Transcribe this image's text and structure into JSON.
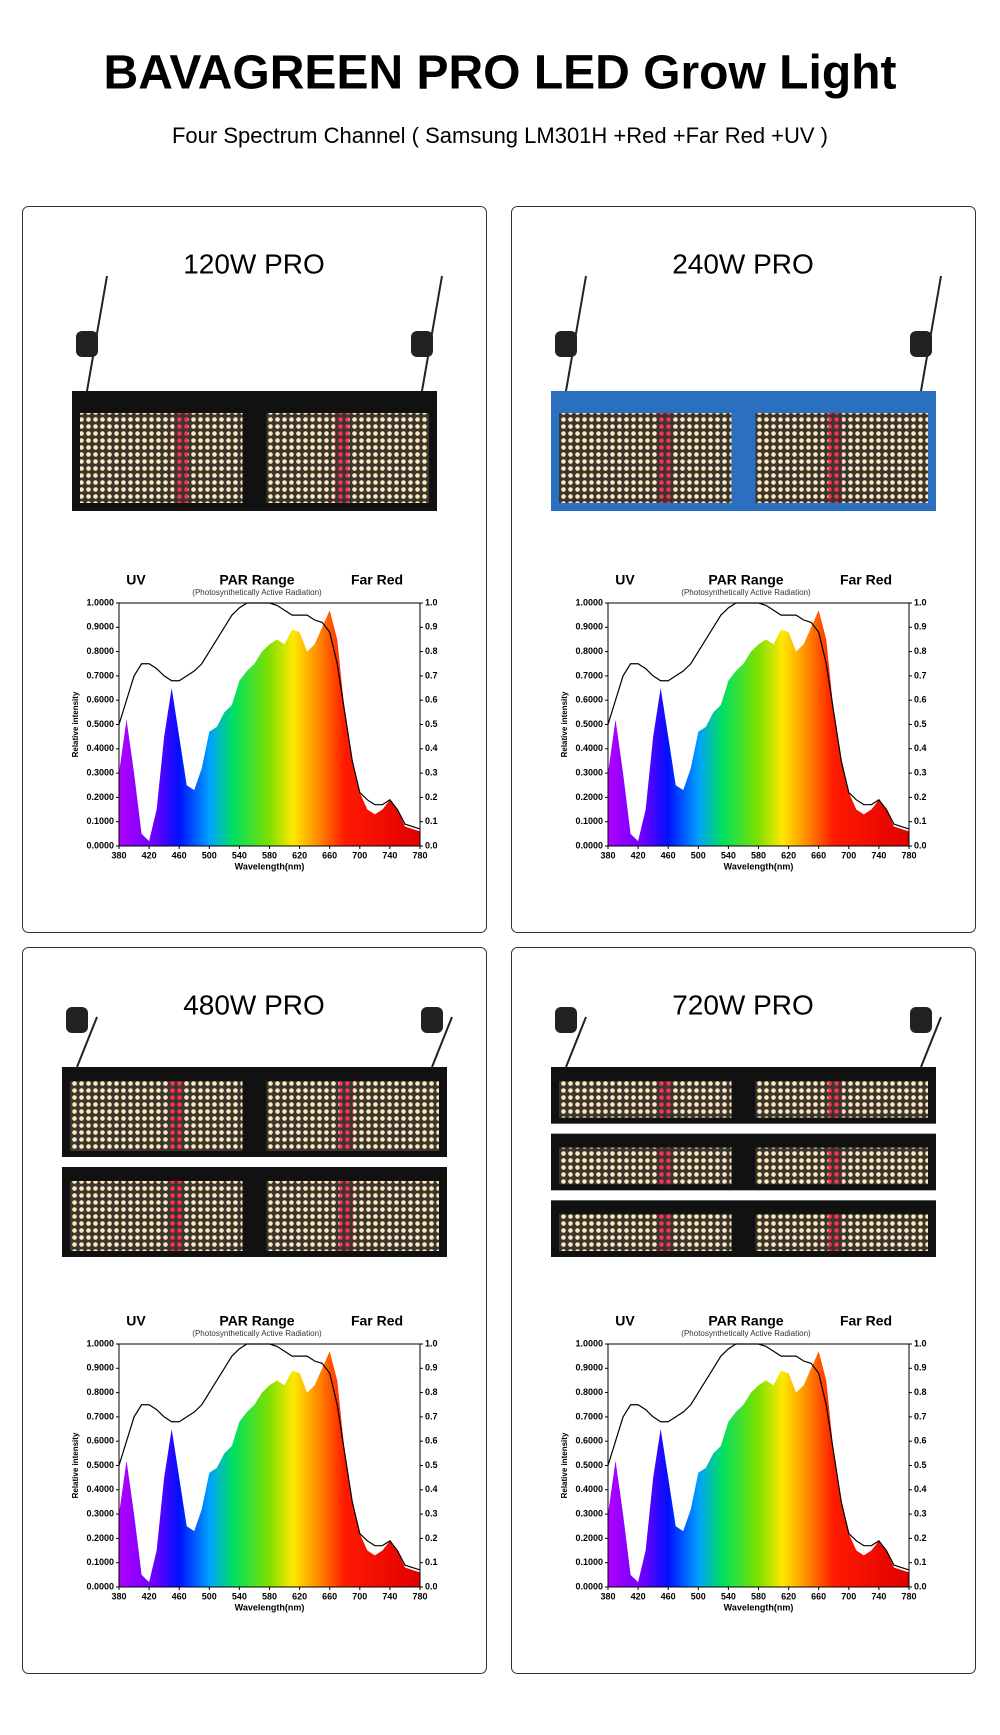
{
  "header": {
    "title": "BAVAGREEN PRO LED Grow Light",
    "subtitle": "Four Spectrum Channel ( Samsung LM301H +Red +Far Red +UV )"
  },
  "panels": [
    {
      "title": "120W PRO"
    },
    {
      "title": "240W PRO"
    },
    {
      "title": "480W PRO"
    },
    {
      "title": "720W PRO"
    }
  ],
  "chart_data": {
    "type": "area",
    "annotations": {
      "uv": "UV",
      "par": "PAR Range",
      "par_note": "(Photosynthetically Active Radiation)",
      "far_red": "Far Red"
    },
    "ylabel": "Relative intensity",
    "xlabel": "Wavelength(nm)",
    "x": [
      380,
      390,
      400,
      410,
      420,
      430,
      440,
      450,
      460,
      470,
      480,
      490,
      500,
      510,
      520,
      530,
      540,
      550,
      560,
      570,
      580,
      590,
      600,
      610,
      620,
      630,
      640,
      650,
      660,
      670,
      680,
      690,
      700,
      710,
      720,
      730,
      740,
      750,
      760,
      770,
      780
    ],
    "series": [
      {
        "color": "#000000",
        "values": [
          0.5,
          0.6,
          0.7,
          0.75,
          0.75,
          0.73,
          0.7,
          0.68,
          0.68,
          0.7,
          0.72,
          0.75,
          0.8,
          0.85,
          0.9,
          0.95,
          0.98,
          1.0,
          1.0,
          1.0,
          1.0,
          0.99,
          0.97,
          0.95,
          0.95,
          0.95,
          0.93,
          0.92,
          0.88,
          0.75,
          0.55,
          0.35,
          0.22,
          0.19,
          0.17,
          0.17,
          0.19,
          0.15,
          0.09,
          0.08,
          0.07
        ]
      },
      {
        "color": "spectrum",
        "values": [
          0.3,
          0.52,
          0.3,
          0.05,
          0.02,
          0.15,
          0.45,
          0.65,
          0.45,
          0.25,
          0.23,
          0.32,
          0.47,
          0.49,
          0.55,
          0.58,
          0.68,
          0.72,
          0.75,
          0.8,
          0.83,
          0.85,
          0.83,
          0.89,
          0.88,
          0.8,
          0.83,
          0.9,
          0.97,
          0.85,
          0.55,
          0.35,
          0.22,
          0.15,
          0.13,
          0.15,
          0.19,
          0.15,
          0.08,
          0.07,
          0.06
        ]
      }
    ],
    "xlim": [
      380,
      780
    ],
    "xticks": [
      380,
      420,
      460,
      500,
      540,
      580,
      620,
      660,
      700,
      740,
      780
    ],
    "ylim": [
      0,
      1
    ],
    "yticks": [
      {
        "value": 0,
        "label": "0.0000"
      },
      {
        "value": 0.1,
        "label": "0.1000"
      },
      {
        "value": 0.2,
        "label": "0.2000"
      },
      {
        "value": 0.3,
        "label": "0.3000"
      },
      {
        "value": 0.4,
        "label": "0.4000"
      },
      {
        "value": 0.5,
        "label": "0.5000"
      },
      {
        "value": 0.6,
        "label": "0.6000"
      },
      {
        "value": 0.7,
        "label": "0.7000"
      },
      {
        "value": 0.8,
        "label": "0.8000"
      },
      {
        "value": 0.9,
        "label": "0.9000"
      },
      {
        "value": 1,
        "label": "1.0000"
      }
    ],
    "y2lim": [
      0,
      1
    ],
    "y2ticks": [
      {
        "value": 0,
        "label": "0.0"
      },
      0.1,
      0.2,
      0.3,
      0.4,
      0.5,
      0.6,
      0.7,
      0.8,
      0.9,
      {
        "value": 1,
        "label": "1.0"
      }
    ]
  }
}
